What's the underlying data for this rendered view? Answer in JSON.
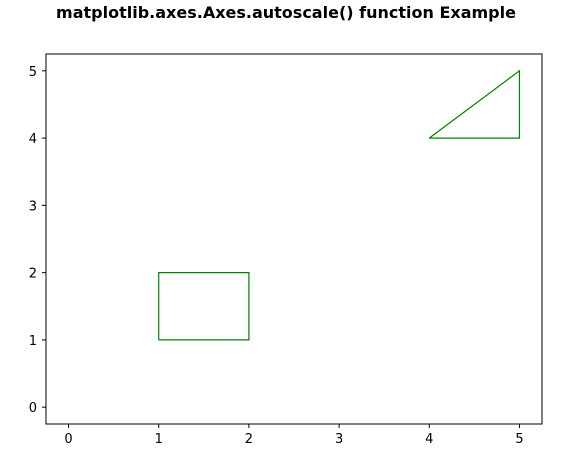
{
  "chart_data": {
    "type": "line",
    "title": "matplotlib.axes.Axes.autoscale() function Example",
    "xlabel": "",
    "ylabel": "",
    "xlim": [
      -0.25,
      5.25
    ],
    "ylim": [
      -0.25,
      5.25
    ],
    "grid": false,
    "x_ticks": [
      0,
      1,
      2,
      3,
      4,
      5
    ],
    "y_ticks": [
      0,
      1,
      2,
      3,
      4,
      5
    ],
    "x_tick_labels": [
      "0",
      "1",
      "2",
      "3",
      "4",
      "5"
    ],
    "y_tick_labels": [
      "0",
      "1",
      "2",
      "3",
      "4",
      "5"
    ],
    "series": [
      {
        "shape": "rectangle",
        "color": "#008000",
        "x": [
          1,
          2,
          2,
          1,
          1
        ],
        "y": [
          1,
          1,
          2,
          2,
          1
        ]
      },
      {
        "shape": "triangle",
        "color": "#008000",
        "x": [
          4,
          5,
          5,
          4
        ],
        "y": [
          4,
          4,
          5,
          4
        ]
      }
    ]
  }
}
